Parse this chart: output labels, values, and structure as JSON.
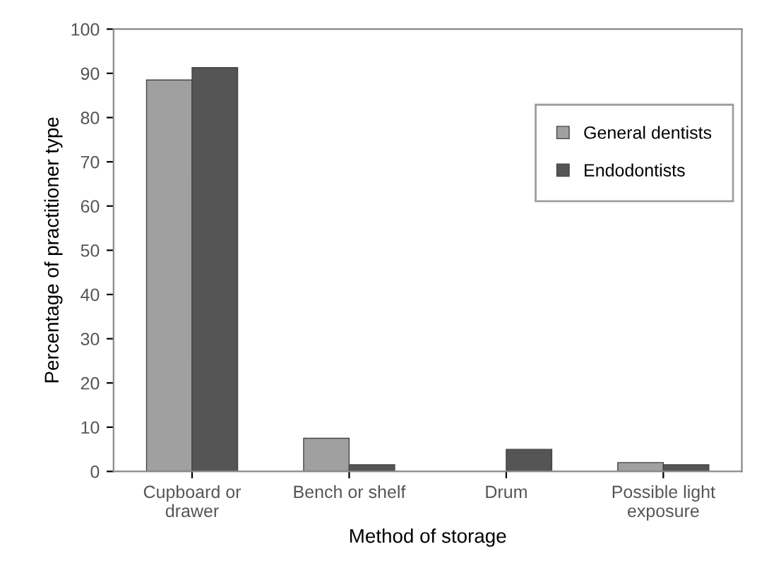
{
  "chart_data": {
    "type": "bar",
    "xlabel": "Method of storage",
    "ylabel": "Percentage of practitioner type",
    "categories": [
      "Cupboard or\ndrawer",
      "Bench or shelf",
      "Drum",
      "Possible light\nexposure"
    ],
    "series": [
      {
        "name": "General dentists",
        "color": "#a0a0a0",
        "values": [
          88.5,
          7.5,
          null,
          2
        ]
      },
      {
        "name": "Endodontists",
        "color": "#555555",
        "values": [
          91.3,
          1.5,
          5,
          1.5
        ]
      }
    ],
    "ylim": [
      0,
      100
    ],
    "yticks": [
      0,
      10,
      20,
      30,
      40,
      50,
      60,
      70,
      80,
      90,
      100
    ],
    "grid": false,
    "legend": "right"
  }
}
